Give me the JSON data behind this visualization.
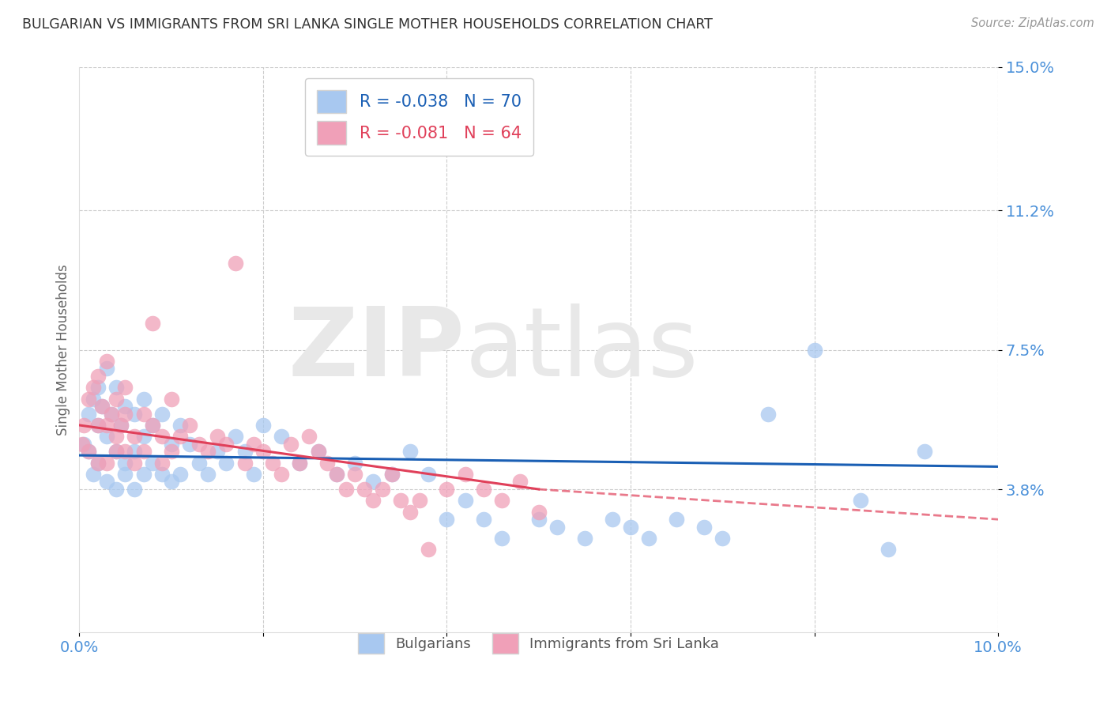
{
  "title": "BULGARIAN VS IMMIGRANTS FROM SRI LANKA SINGLE MOTHER HOUSEHOLDS CORRELATION CHART",
  "source": "Source: ZipAtlas.com",
  "ylabel": "Single Mother Households",
  "xlim": [
    0.0,
    0.1
  ],
  "ylim": [
    0.0,
    0.15
  ],
  "xticks": [
    0.0,
    0.02,
    0.04,
    0.06,
    0.08,
    0.1
  ],
  "xticklabels": [
    "0.0%",
    "",
    "",
    "",
    "",
    "10.0%"
  ],
  "ytick_positions": [
    0.038,
    0.075,
    0.112,
    0.15
  ],
  "ytick_labels": [
    "3.8%",
    "7.5%",
    "11.2%",
    "15.0%"
  ],
  "watermark_zip": "ZIP",
  "watermark_atlas": "atlas",
  "blue_color": "#a8c8f0",
  "pink_color": "#f0a0b8",
  "blue_line_color": "#1a5fb4",
  "pink_line_color": "#e0405a",
  "background_color": "#ffffff",
  "grid_color": "#cccccc",
  "axis_label_color": "#4a90d9",
  "title_color": "#333333",
  "blue_R": -0.038,
  "blue_N": 70,
  "pink_R": -0.081,
  "pink_N": 64,
  "blue_scatter_x": [
    0.0005,
    0.001,
    0.001,
    0.0015,
    0.0015,
    0.002,
    0.002,
    0.002,
    0.0025,
    0.003,
    0.003,
    0.003,
    0.0035,
    0.004,
    0.004,
    0.004,
    0.0045,
    0.005,
    0.005,
    0.005,
    0.006,
    0.006,
    0.006,
    0.007,
    0.007,
    0.007,
    0.008,
    0.008,
    0.009,
    0.009,
    0.01,
    0.01,
    0.011,
    0.011,
    0.012,
    0.013,
    0.014,
    0.015,
    0.016,
    0.017,
    0.018,
    0.019,
    0.02,
    0.022,
    0.024,
    0.026,
    0.028,
    0.03,
    0.032,
    0.034,
    0.036,
    0.038,
    0.04,
    0.042,
    0.044,
    0.046,
    0.05,
    0.052,
    0.055,
    0.058,
    0.06,
    0.062,
    0.065,
    0.068,
    0.07,
    0.075,
    0.08,
    0.085,
    0.088,
    0.092
  ],
  "blue_scatter_y": [
    0.05,
    0.058,
    0.048,
    0.062,
    0.042,
    0.065,
    0.055,
    0.045,
    0.06,
    0.07,
    0.052,
    0.04,
    0.058,
    0.065,
    0.048,
    0.038,
    0.055,
    0.06,
    0.045,
    0.042,
    0.058,
    0.048,
    0.038,
    0.062,
    0.052,
    0.042,
    0.055,
    0.045,
    0.058,
    0.042,
    0.05,
    0.04,
    0.055,
    0.042,
    0.05,
    0.045,
    0.042,
    0.048,
    0.045,
    0.052,
    0.048,
    0.042,
    0.055,
    0.052,
    0.045,
    0.048,
    0.042,
    0.045,
    0.04,
    0.042,
    0.048,
    0.042,
    0.03,
    0.035,
    0.03,
    0.025,
    0.03,
    0.028,
    0.025,
    0.03,
    0.028,
    0.025,
    0.03,
    0.028,
    0.025,
    0.058,
    0.075,
    0.035,
    0.022,
    0.048
  ],
  "pink_scatter_x": [
    0.0003,
    0.0005,
    0.001,
    0.001,
    0.0015,
    0.002,
    0.002,
    0.002,
    0.0025,
    0.003,
    0.003,
    0.003,
    0.0035,
    0.004,
    0.004,
    0.004,
    0.0045,
    0.005,
    0.005,
    0.005,
    0.006,
    0.006,
    0.007,
    0.007,
    0.008,
    0.008,
    0.009,
    0.009,
    0.01,
    0.01,
    0.011,
    0.012,
    0.013,
    0.014,
    0.015,
    0.016,
    0.017,
    0.018,
    0.019,
    0.02,
    0.021,
    0.022,
    0.023,
    0.024,
    0.025,
    0.026,
    0.027,
    0.028,
    0.029,
    0.03,
    0.031,
    0.032,
    0.033,
    0.034,
    0.035,
    0.036,
    0.037,
    0.038,
    0.04,
    0.042,
    0.044,
    0.046,
    0.048,
    0.05
  ],
  "pink_scatter_y": [
    0.05,
    0.055,
    0.062,
    0.048,
    0.065,
    0.055,
    0.068,
    0.045,
    0.06,
    0.072,
    0.055,
    0.045,
    0.058,
    0.052,
    0.048,
    0.062,
    0.055,
    0.058,
    0.048,
    0.065,
    0.052,
    0.045,
    0.058,
    0.048,
    0.082,
    0.055,
    0.052,
    0.045,
    0.062,
    0.048,
    0.052,
    0.055,
    0.05,
    0.048,
    0.052,
    0.05,
    0.098,
    0.045,
    0.05,
    0.048,
    0.045,
    0.042,
    0.05,
    0.045,
    0.052,
    0.048,
    0.045,
    0.042,
    0.038,
    0.042,
    0.038,
    0.035,
    0.038,
    0.042,
    0.035,
    0.032,
    0.035,
    0.022,
    0.038,
    0.042,
    0.038,
    0.035,
    0.04,
    0.032
  ],
  "blue_line_start_y": 0.047,
  "blue_line_end_y": 0.044,
  "pink_line_start_y": 0.055,
  "pink_line_end_x_solid": 0.05,
  "pink_line_end_y": 0.038,
  "pink_line_dash_end_y": 0.03
}
